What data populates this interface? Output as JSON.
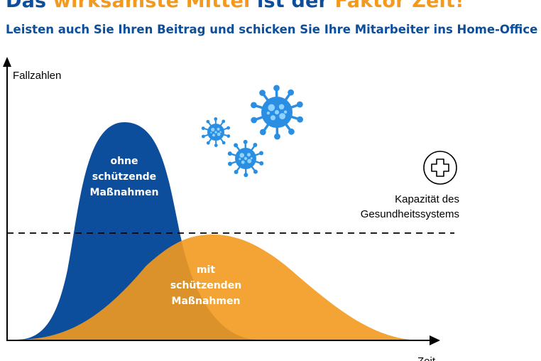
{
  "header": {
    "title_part1": "Das",
    "title_part2": "wirksamste Mittel",
    "title_part3": "ist der",
    "title_part4": "Faktor Zeit!",
    "subtitle": "Leisten auch Sie Ihren Beitrag und schicken Sie Ihre Mitarbeiter ins Home-Office"
  },
  "diagram": {
    "ylabel": "Fallzahlen",
    "xlabel": "Zeit",
    "curve_without_measures": [
      "ohne",
      "schützende",
      "Maßnahmen"
    ],
    "curve_with_measures": [
      "mit",
      "schützenden",
      "Maßnahmen"
    ],
    "capacity_label": [
      "Kapazität des",
      "Gesundheitssystems"
    ],
    "icons": [
      "virus-icon",
      "virus-icon",
      "virus-icon",
      "medical-cross-icon"
    ]
  },
  "colors": {
    "blue": "#0d4e9c",
    "orange": "#f39a1e",
    "virus": "#2a8fe3"
  }
}
